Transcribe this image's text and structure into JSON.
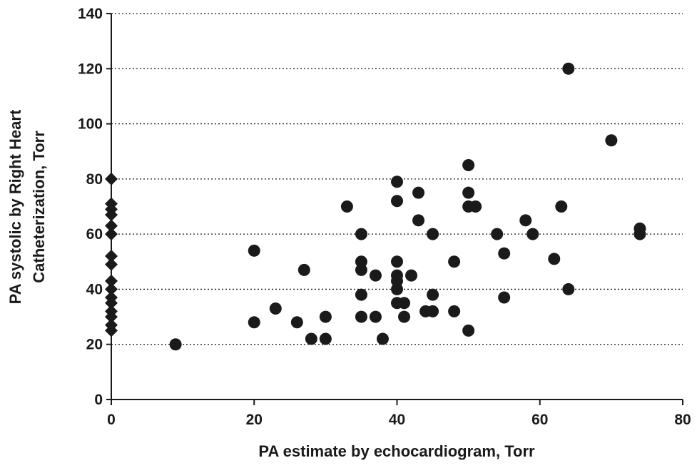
{
  "chart_data": {
    "type": "scatter",
    "title": "",
    "xlabel": "PA estimate by echocardiogram, Torr",
    "ylabel_lines": [
      "PA systolic by Right Heart",
      "Catheterization, Torr"
    ],
    "xlim": [
      0,
      80
    ],
    "ylim": [
      0,
      140
    ],
    "x_ticks": [
      0,
      20,
      40,
      60,
      80
    ],
    "y_ticks": [
      0,
      20,
      40,
      60,
      80,
      100,
      120,
      140
    ],
    "grid": "horizontal dotted",
    "series": [
      {
        "marker": "diamond",
        "points": [
          [
            0,
            80
          ],
          [
            0,
            71
          ],
          [
            0,
            69
          ],
          [
            0,
            67
          ],
          [
            0,
            63
          ],
          [
            0,
            60
          ],
          [
            0,
            52
          ],
          [
            0,
            49
          ],
          [
            0,
            43
          ],
          [
            0,
            40
          ],
          [
            0,
            37
          ],
          [
            0,
            35
          ],
          [
            0,
            32
          ],
          [
            0,
            30
          ],
          [
            0,
            27
          ],
          [
            0,
            25
          ]
        ]
      },
      {
        "marker": "circle",
        "points": [
          [
            9,
            20
          ],
          [
            20,
            54
          ],
          [
            20,
            28
          ],
          [
            23,
            33
          ],
          [
            26,
            28
          ],
          [
            27,
            47
          ],
          [
            28,
            22
          ],
          [
            30,
            30
          ],
          [
            30,
            22
          ],
          [
            33,
            70
          ],
          [
            35,
            60
          ],
          [
            35,
            50
          ],
          [
            35,
            47
          ],
          [
            35,
            38
          ],
          [
            35,
            30
          ],
          [
            37,
            45
          ],
          [
            37,
            30
          ],
          [
            38,
            22
          ],
          [
            40,
            79
          ],
          [
            40,
            72
          ],
          [
            40,
            50
          ],
          [
            40,
            45
          ],
          [
            40,
            43
          ],
          [
            40,
            40
          ],
          [
            40,
            35
          ],
          [
            41,
            35
          ],
          [
            41,
            30
          ],
          [
            42,
            45
          ],
          [
            43,
            75
          ],
          [
            43,
            65
          ],
          [
            44,
            32
          ],
          [
            45,
            60
          ],
          [
            45,
            38
          ],
          [
            45,
            32
          ],
          [
            48,
            50
          ],
          [
            48,
            32
          ],
          [
            50,
            85
          ],
          [
            50,
            75
          ],
          [
            50,
            70
          ],
          [
            50,
            25
          ],
          [
            51,
            70
          ],
          [
            54,
            60
          ],
          [
            55,
            53
          ],
          [
            55,
            37
          ],
          [
            58,
            65
          ],
          [
            59,
            60
          ],
          [
            62,
            51
          ],
          [
            63,
            70
          ],
          [
            64,
            120
          ],
          [
            64,
            40
          ],
          [
            70,
            94
          ],
          [
            74,
            62
          ],
          [
            74,
            60
          ]
        ]
      }
    ]
  }
}
